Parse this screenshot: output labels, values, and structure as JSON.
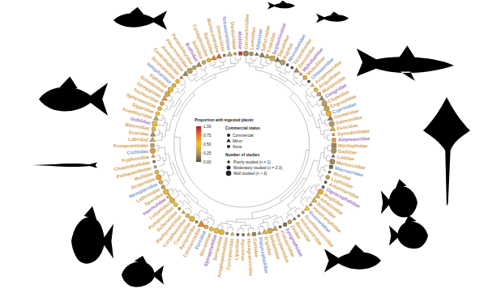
{
  "chart_data": {
    "type": "tree",
    "families": [
      {
        "name": "Carcharhinidae",
        "proportion": 0.18,
        "status": "Commercial",
        "n_studies": 5,
        "color": "#d4a35a"
      },
      {
        "name": "Lamnidae",
        "proportion": 0.22,
        "status": "Commercial",
        "n_studies": 3,
        "color": "#d4a35a"
      },
      {
        "name": "Alopiidae",
        "proportion": 0.1,
        "status": "Minor",
        "n_studies": 1,
        "color": "#7b9bd1"
      },
      {
        "name": "Sphyrnidae",
        "proportion": 0.15,
        "status": "Minor",
        "n_studies": 2,
        "color": "#d4a35a"
      },
      {
        "name": "Triakidae",
        "proportion": 0.3,
        "status": "Minor",
        "n_studies": 2,
        "color": "#d4a35a"
      },
      {
        "name": "Scyliorhinidae",
        "proportion": 0.35,
        "status": "None",
        "n_studies": 4,
        "color": "#a678c0"
      },
      {
        "name": "Squalidae",
        "proportion": 0.12,
        "status": "Minor",
        "n_studies": 2,
        "color": "#d4a35a"
      },
      {
        "name": "Rajidae",
        "proportion": 0.25,
        "status": "Commercial",
        "n_studies": 4,
        "color": "#d4a35a"
      },
      {
        "name": "Rhinobatidae",
        "proportion": 0.05,
        "status": "None",
        "n_studies": 1,
        "color": "#7b9bd1"
      },
      {
        "name": "Torpedinidae",
        "proportion": 0,
        "status": "None",
        "n_studies": 1,
        "color": "#d4a35a"
      },
      {
        "name": "Dasyatidae",
        "proportion": 0.2,
        "status": "Minor",
        "n_studies": 2,
        "color": "#d4a35a"
      },
      {
        "name": "Myliobatidae",
        "proportion": 0.4,
        "status": "None",
        "n_studies": 1,
        "color": "#a678c0"
      },
      {
        "name": "Mobulidae",
        "proportion": 0.6,
        "status": "None",
        "n_studies": 2,
        "color": "#d4a35a"
      },
      {
        "name": "Chimaeridae",
        "proportion": 0,
        "status": "None",
        "n_studies": 1,
        "color": "#7b9bd1"
      },
      {
        "name": "Acipenseridae",
        "proportion": 0.5,
        "status": "Minor",
        "n_studies": 1,
        "color": "#d4a35a"
      },
      {
        "name": "Anguillidae",
        "proportion": 0.45,
        "status": "Commercial",
        "n_studies": 3,
        "color": "#d4a35a"
      },
      {
        "name": "Muraenidae",
        "proportion": 0.3,
        "status": "None",
        "n_studies": 2,
        "color": "#d4a35a"
      },
      {
        "name": "Congridae",
        "proportion": 0.2,
        "status": "Minor",
        "n_studies": 2,
        "color": "#a678c0"
      },
      {
        "name": "Clupeidae",
        "proportion": 0.28,
        "status": "Commercial",
        "n_studies": 8,
        "color": "#d4a35a"
      },
      {
        "name": "Engraulidae",
        "proportion": 0.32,
        "status": "Commercial",
        "n_studies": 7,
        "color": "#d4a35a"
      },
      {
        "name": "Cyprinidae",
        "proportion": 0.55,
        "status": "Commercial",
        "n_studies": 5,
        "color": "#7b9bd1"
      },
      {
        "name": "Osmeridae",
        "proportion": 0.15,
        "status": "Minor",
        "n_studies": 2,
        "color": "#d4a35a"
      },
      {
        "name": "Salmonidae",
        "proportion": 0.25,
        "status": "Commercial",
        "n_studies": 6,
        "color": "#d4a35a"
      },
      {
        "name": "Esocidae",
        "proportion": 0.4,
        "status": "Minor",
        "n_studies": 2,
        "color": "#d4a35a"
      },
      {
        "name": "Synodontidae",
        "proportion": 0.35,
        "status": "None",
        "n_studies": 1,
        "color": "#d4a35a"
      },
      {
        "name": "Alepisauridae",
        "proportion": 0.65,
        "status": "None",
        "n_studies": 3,
        "color": "#a678c0"
      },
      {
        "name": "Myctophidae",
        "proportion": 0.18,
        "status": "None",
        "n_studies": 9,
        "color": "#d4a35a"
      },
      {
        "name": "Gadidae",
        "proportion": 0.22,
        "status": "Commercial",
        "n_studies": 9,
        "color": "#d4a35a"
      },
      {
        "name": "Lotidae",
        "proportion": 0.1,
        "status": "Minor",
        "n_studies": 1,
        "color": "#d4a35a"
      },
      {
        "name": "Merlucciidae",
        "proportion": 0.2,
        "status": "Commercial",
        "n_studies": 4,
        "color": "#d4a35a"
      },
      {
        "name": "Macrouridae",
        "proportion": 0.08,
        "status": "None",
        "n_studies": 2,
        "color": "#7b9bd1"
      },
      {
        "name": "Moridae",
        "proportion": 0.12,
        "status": "None",
        "n_studies": 1,
        "color": "#d4a35a"
      },
      {
        "name": "Lophiidae",
        "proportion": 0.3,
        "status": "Commercial",
        "n_studies": 2,
        "color": "#d4a35a"
      },
      {
        "name": "Antennariidae",
        "proportion": 0,
        "status": "None",
        "n_studies": 1,
        "color": "#d4a35a"
      },
      {
        "name": "Ogcocephalidae",
        "proportion": 0,
        "status": "None",
        "n_studies": 1,
        "color": "#a678c0"
      },
      {
        "name": "Mugilidae",
        "proportion": 0.58,
        "status": "Commercial",
        "n_studies": 6,
        "color": "#d4a35a"
      },
      {
        "name": "Atherinidae",
        "proportion": 0.45,
        "status": "Minor",
        "n_studies": 2,
        "color": "#d4a35a"
      },
      {
        "name": "Belonidae",
        "proportion": 0.38,
        "status": "Minor",
        "n_studies": 2,
        "color": "#d4a35a"
      },
      {
        "name": "Hemiramphidae",
        "proportion": 0.25,
        "status": "Minor",
        "n_studies": 1,
        "color": "#d4a35a"
      },
      {
        "name": "Exocoetidae",
        "proportion": 0.5,
        "status": "Minor",
        "n_studies": 3,
        "color": "#7b9bd1"
      },
      {
        "name": "Scomberesocidae",
        "proportion": 0.33,
        "status": "None",
        "n_studies": 1,
        "color": "#d4a35a"
      },
      {
        "name": "Holocentridae",
        "proportion": 0.2,
        "status": "None",
        "n_studies": 1,
        "color": "#d4a35a"
      },
      {
        "name": "Berycidae",
        "proportion": 0.15,
        "status": "Minor",
        "n_studies": 1,
        "color": "#d4a35a"
      },
      {
        "name": "Zeidae",
        "proportion": 0.28,
        "status": "Commercial",
        "n_studies": 2,
        "color": "#d4a35a"
      },
      {
        "name": "Syngnathidae",
        "proportion": 0.1,
        "status": "None",
        "n_studies": 2,
        "color": "#a678c0"
      },
      {
        "name": "Fistulariidae",
        "proportion": 0.05,
        "status": "None",
        "n_studies": 1,
        "color": "#d4a35a"
      },
      {
        "name": "Scorpaenidae",
        "proportion": 0.3,
        "status": "Minor",
        "n_studies": 3,
        "color": "#d4a35a"
      },
      {
        "name": "Sebastidae",
        "proportion": 0.35,
        "status": "Commercial",
        "n_studies": 4,
        "color": "#d4a35a"
      },
      {
        "name": "Triglidae",
        "proportion": 0.42,
        "status": "Minor",
        "n_studies": 3,
        "color": "#d4a35a"
      },
      {
        "name": "Platycephalidae",
        "proportion": 0.22,
        "status": "Minor",
        "n_studies": 1,
        "color": "#7b9bd1"
      },
      {
        "name": "Cottidae",
        "proportion": 0.18,
        "status": "None",
        "n_studies": 2,
        "color": "#d4a35a"
      },
      {
        "name": "Hexagrammidae",
        "proportion": 0.25,
        "status": "Minor",
        "n_studies": 1,
        "color": "#d4a35a"
      },
      {
        "name": "Agonidae",
        "proportion": 0.1,
        "status": "None",
        "n_studies": 1,
        "color": "#d4a35a"
      },
      {
        "name": "Liparidae",
        "proportion": 0,
        "status": "None",
        "n_studies": 1,
        "color": "#d4a35a"
      },
      {
        "name": "Cyclopteridae",
        "proportion": 0.4,
        "status": "Minor",
        "n_studies": 1,
        "color": "#d4a35a"
      },
      {
        "name": "Anoplopomatidae",
        "proportion": 0.2,
        "status": "Commercial",
        "n_studies": 1,
        "color": "#d4a35a"
      },
      {
        "name": "Serranidae",
        "proportion": 0.45,
        "status": "Commercial",
        "n_studies": 5,
        "color": "#d4a35a"
      },
      {
        "name": "Epinephelidae",
        "proportion": 0.48,
        "status": "Commercial",
        "n_studies": 4,
        "color": "#a678c0"
      },
      {
        "name": "Moronidae",
        "proportion": 0.52,
        "status": "Commercial",
        "n_studies": 3,
        "color": "#d4a35a"
      },
      {
        "name": "Percidae",
        "proportion": 0.38,
        "status": "Commercial",
        "n_studies": 3,
        "color": "#7b9bd1"
      },
      {
        "name": "Centrarchidae",
        "proportion": 0.7,
        "status": "Minor",
        "n_studies": 4,
        "color": "#d4a35a"
      },
      {
        "name": "Apogonidae",
        "proportion": 0.15,
        "status": "None",
        "n_studies": 1,
        "color": "#d4a35a"
      },
      {
        "name": "Carangidae",
        "proportion": 0.42,
        "status": "Commercial",
        "n_studies": 9,
        "color": "#d4a35a"
      },
      {
        "name": "Coryphaenidae",
        "proportion": 0.55,
        "status": "Commercial",
        "n_studies": 3,
        "color": "#d4a35a"
      },
      {
        "name": "Rachycentridae",
        "proportion": 0.35,
        "status": "Minor",
        "n_studies": 1,
        "color": "#d4a35a"
      },
      {
        "name": "Echeneidae",
        "proportion": 0.2,
        "status": "None",
        "n_studies": 1,
        "color": "#d4a35a"
      },
      {
        "name": "Pomatomidae",
        "proportion": 0.5,
        "status": "Commercial",
        "n_studies": 2,
        "color": "#d4a35a"
      },
      {
        "name": "Lutjanidae",
        "proportion": 0.4,
        "status": "Commercial",
        "n_studies": 5,
        "color": "#d4a35a"
      },
      {
        "name": "Haemulidae",
        "proportion": 0.55,
        "status": "Minor",
        "n_studies": 3,
        "color": "#a678c0"
      },
      {
        "name": "Sparidae",
        "proportion": 0.47,
        "status": "Commercial",
        "n_studies": 7,
        "color": "#d4a35a"
      },
      {
        "name": "Lethrinidae",
        "proportion": 0.32,
        "status": "Commercial",
        "n_studies": 2,
        "color": "#d4a35a"
      },
      {
        "name": "Nemipteridae",
        "proportion": 0.38,
        "status": "Commercial",
        "n_studies": 2,
        "color": "#7b9bd1"
      },
      {
        "name": "Sciaenidae",
        "proportion": 0.6,
        "status": "Commercial",
        "n_studies": 6,
        "color": "#d4a35a"
      },
      {
        "name": "Mullidae",
        "proportion": 0.45,
        "status": "Commercial",
        "n_studies": 3,
        "color": "#d4a35a"
      },
      {
        "name": "Pomacanthidae",
        "proportion": 0.25,
        "status": "None",
        "n_studies": 1,
        "color": "#d4a35a"
      },
      {
        "name": "Chaetodontidae",
        "proportion": 0.12,
        "status": "None",
        "n_studies": 1,
        "color": "#d4a35a"
      },
      {
        "name": "Kyphosidae",
        "proportion": 0.3,
        "status": "Minor",
        "n_studies": 1,
        "color": "#d4a35a"
      },
      {
        "name": "Cichlidae",
        "proportion": 0.62,
        "status": "Commercial",
        "n_studies": 4,
        "color": "#7b9bd1"
      },
      {
        "name": "Pomacentridae",
        "proportion": 0.28,
        "status": "None",
        "n_studies": 3,
        "color": "#d4a35a"
      },
      {
        "name": "Labridae",
        "proportion": 0.35,
        "status": "Minor",
        "n_studies": 3,
        "color": "#d4a35a"
      },
      {
        "name": "Scaridae",
        "proportion": 0.22,
        "status": "Minor",
        "n_studies": 2,
        "color": "#d4a35a"
      },
      {
        "name": "Blenniidae",
        "proportion": 0.4,
        "status": "None",
        "n_studies": 2,
        "color": "#d4a35a"
      },
      {
        "name": "Gobiidae",
        "proportion": 0.48,
        "status": "None",
        "n_studies": 5,
        "color": "#a678c0"
      },
      {
        "name": "Acanthuridae",
        "proportion": 0.3,
        "status": "Minor",
        "n_studies": 3,
        "color": "#d4a35a"
      },
      {
        "name": "Siganidae",
        "proportion": 0.5,
        "status": "Commercial",
        "n_studies": 2,
        "color": "#d4a35a"
      },
      {
        "name": "Sphyraenidae",
        "proportion": 0.43,
        "status": "Commercial",
        "n_studies": 3,
        "color": "#d4a35a"
      },
      {
        "name": "Trichiuridae",
        "proportion": 0.58,
        "status": "Commercial",
        "n_studies": 3,
        "color": "#d4a35a"
      },
      {
        "name": "Gempylidae",
        "proportion": 0.65,
        "status": "Minor",
        "n_studies": 2,
        "color": "#d4a35a"
      },
      {
        "name": "Scombridae",
        "proportion": 0.36,
        "status": "Commercial",
        "n_studies": 9,
        "color": "#d4a35a"
      },
      {
        "name": "Xiphiidae",
        "proportion": 0.45,
        "status": "Commercial",
        "n_studies": 4,
        "color": "#d4a35a"
      },
      {
        "name": "Istiophoridae",
        "proportion": 0.4,
        "status": "Commercial",
        "n_studies": 3,
        "color": "#7b9bd1"
      },
      {
        "name": "Stromateidae",
        "proportion": 0.52,
        "status": "Commercial",
        "n_studies": 2,
        "color": "#d4a35a"
      },
      {
        "name": "Centrolophidae",
        "proportion": 0.75,
        "status": "Minor",
        "n_studies": 1,
        "color": "#d4a35a"
      },
      {
        "name": "Ammodytidae",
        "proportion": 0.18,
        "status": "Minor",
        "n_studies": 2,
        "color": "#d4a35a"
      },
      {
        "name": "Pleuronectidae",
        "proportion": 0.26,
        "status": "Commercial",
        "n_studies": 6,
        "color": "#d4a35a"
      },
      {
        "name": "Paralichthyidae",
        "proportion": 0.3,
        "status": "Commercial",
        "n_studies": 3,
        "color": "#d4a35a"
      },
      {
        "name": "Bothidae",
        "proportion": 0.2,
        "status": "Minor",
        "n_studies": 2,
        "color": "#a678c0"
      },
      {
        "name": "Soleidae",
        "proportion": 0.35,
        "status": "Commercial",
        "n_studies": 3,
        "color": "#d4a35a"
      },
      {
        "name": "Cynoglossidae",
        "proportion": 0.55,
        "status": "Commercial",
        "n_studies": 2,
        "color": "#d4a35a"
      },
      {
        "name": "Balistidae",
        "proportion": 0.72,
        "status": "Minor",
        "n_studies": 3,
        "color": "#d4a35a"
      },
      {
        "name": "Monacanthidae",
        "proportion": 0.8,
        "status": "Minor",
        "n_studies": 2,
        "color": "#d4a35a"
      },
      {
        "name": "Ostraciidae",
        "proportion": 0.15,
        "status": "None",
        "n_studies": 1,
        "color": "#d4a35a"
      },
      {
        "name": "Tetraodontidae",
        "proportion": 0.38,
        "status": "Minor",
        "n_studies": 3,
        "color": "#7b9bd1"
      },
      {
        "name": "Diodontidae",
        "proportion": 0.25,
        "status": "None",
        "n_studies": 1,
        "color": "#d4a35a"
      },
      {
        "name": "Molidae",
        "proportion": 0.9,
        "status": "None",
        "n_studies": 2,
        "color": "#a678c0"
      }
    ],
    "colorbar": {
      "title": "Proportion with ingested plastic",
      "range": [
        0,
        1
      ],
      "ticks": [
        {
          "value": 1,
          "label": "1.00"
        },
        {
          "value": 0.75,
          "label": "0.75"
        },
        {
          "value": 0.5,
          "label": "0.50"
        },
        {
          "value": 0.25,
          "label": "0.25"
        },
        {
          "value": 0,
          "label": "0.00"
        }
      ],
      "colors": [
        "#4d4d4d",
        "#b89a5c",
        "#f0c030",
        "#e8772e",
        "#b2182b"
      ]
    },
    "status_legend": {
      "title": "Commercial status",
      "entries": [
        {
          "label": "Commercial",
          "marker": "circle"
        },
        {
          "label": "Minor",
          "marker": "triangle"
        },
        {
          "label": "None",
          "marker": "square"
        }
      ]
    },
    "studies_legend": {
      "title": "Number of studies",
      "entries": [
        {
          "label": "Poorly studied (n = 1)",
          "min": 1,
          "max": 1
        },
        {
          "label": "Moderately studied (n = 2-3)",
          "min": 2,
          "max": 3
        },
        {
          "label": "Well studied (n > 3)",
          "min": 4,
          "max": null
        }
      ]
    }
  }
}
